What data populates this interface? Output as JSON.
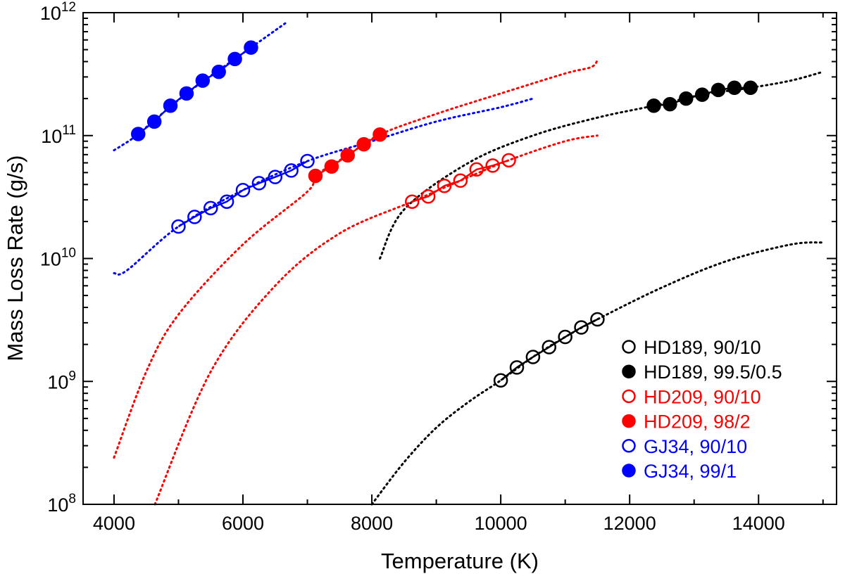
{
  "chart_data": {
    "type": "scatter",
    "title": "",
    "xlabel": "Temperature (K)",
    "ylabel": "Mass Loss Rate (g/s)",
    "xlim": [
      3520,
      15210
    ],
    "ylim": [
      100000000.0,
      1000000000000.0
    ],
    "yscale": "log",
    "grid": false,
    "legend_position": "bottom-right",
    "x_ticks": [
      4000,
      6000,
      8000,
      10000,
      12000,
      14000
    ],
    "x_tick_labels": [
      "4000",
      "6000",
      "8000",
      "10000",
      "12000",
      "14000"
    ],
    "y_ticks": [
      100000000.0,
      1000000000.0,
      10000000000.0,
      100000000000.0,
      1000000000000.0
    ],
    "y_tick_labels": [
      {
        "base": "10",
        "exp": "8"
      },
      {
        "base": "10",
        "exp": "9"
      },
      {
        "base": "10",
        "exp": "10"
      },
      {
        "base": "10",
        "exp": "11"
      },
      {
        "base": "10",
        "exp": "12"
      }
    ],
    "series": [
      {
        "name": "HD189, 90/10",
        "color": "#000000",
        "filled": false,
        "x": [
          10000,
          10250,
          10500,
          10750,
          11000,
          11250,
          11500
        ],
        "y": [
          1020000000.0,
          1300000000.0,
          1580000000.0,
          1900000000.0,
          2300000000.0,
          2750000000.0,
          3200000000.0
        ],
        "dotted": [
          [
            8000,
            100000000.0
          ],
          [
            8500,
            220000000.0
          ],
          [
            9000,
            420000000.0
          ],
          [
            9500,
            680000000.0
          ],
          [
            10000,
            1020000000.0
          ],
          [
            10500,
            1580000000.0
          ],
          [
            11000,
            2300000000.0
          ],
          [
            11500,
            3200000000.0
          ],
          [
            12500,
            5800000000.0
          ],
          [
            13500,
            9500000000.0
          ],
          [
            14500,
            13000000000.0
          ],
          [
            15000,
            13500000000.0
          ]
        ]
      },
      {
        "name": "HD189, 99.5/0.5",
        "color": "#000000",
        "filled": true,
        "x": [
          12375,
          12625,
          12875,
          13125,
          13375,
          13625,
          13875
        ],
        "y": [
          175000000000.0,
          180000000000.0,
          200000000000.0,
          215000000000.0,
          235000000000.0,
          245000000000.0,
          245000000000.0
        ],
        "dotted": [
          [
            8125,
            10000000000.0
          ],
          [
            8500,
            25000000000.0
          ],
          [
            9500,
            60000000000.0
          ],
          [
            10500,
            100000000000.0
          ],
          [
            11500,
            140000000000.0
          ],
          [
            12375,
            175000000000.0
          ],
          [
            13125,
            215000000000.0
          ],
          [
            13875,
            245000000000.0
          ],
          [
            14500,
            280000000000.0
          ],
          [
            15000,
            330000000000.0
          ]
        ]
      },
      {
        "name": "HD209, 90/10",
        "color": "#ff0000",
        "filled": false,
        "x": [
          8625,
          8875,
          9125,
          9375,
          9625,
          9875,
          10125
        ],
        "y": [
          29000000000.0,
          32000000000.0,
          39000000000.0,
          43000000000.0,
          53000000000.0,
          57000000000.0,
          63000000000.0
        ],
        "dotted": [
          [
            4634,
            100000000.0
          ],
          [
            5500,
            1200000000.0
          ],
          [
            6500,
            6000000000.0
          ],
          [
            7500,
            16000000000.0
          ],
          [
            8625,
            29000000000.0
          ],
          [
            9375,
            43000000000.0
          ],
          [
            10125,
            63000000000.0
          ],
          [
            11000,
            90000000000.0
          ],
          [
            11500,
            100000000000.0
          ]
        ]
      },
      {
        "name": "HD209, 98/2",
        "color": "#ff0000",
        "filled": true,
        "x": [
          7125,
          7375,
          7625,
          7875,
          8125
        ],
        "y": [
          47000000000.0,
          56000000000.0,
          69000000000.0,
          85000000000.0,
          102000000000.0
        ],
        "dotted": [
          [
            4000,
            240000000.0
          ],
          [
            4500,
            1200000000.0
          ],
          [
            5000,
            3500000000.0
          ],
          [
            6000,
            13000000000.0
          ],
          [
            7000,
            35000000000.0
          ],
          [
            7125,
            47000000000.0
          ],
          [
            7625,
            69000000000.0
          ],
          [
            8125,
            102000000000.0
          ],
          [
            9000,
            150000000000.0
          ],
          [
            10000,
            220000000000.0
          ],
          [
            11000,
            320000000000.0
          ],
          [
            11400,
            360000000000.0
          ],
          [
            11500,
            410000000000.0
          ]
        ]
      },
      {
        "name": "GJ34, 90/10",
        "color": "#0000ff",
        "filled": false,
        "x": [
          5000,
          5250,
          5500,
          5750,
          6000,
          6250,
          6500,
          6750,
          7000
        ],
        "y": [
          18200000000.0,
          21800000000.0,
          25700000000.0,
          29000000000.0,
          36000000000.0,
          41000000000.0,
          46000000000.0,
          52000000000.0,
          62000000000.0
        ],
        "dotted": [
          [
            4000,
            7600000000.0
          ],
          [
            4200,
            8000000000.0
          ],
          [
            5000,
            18200000000.0
          ],
          [
            6000,
            36000000000.0
          ],
          [
            7000,
            62000000000.0
          ],
          [
            8000,
            90000000000.0
          ],
          [
            9000,
            130000000000.0
          ],
          [
            10000,
            170000000000.0
          ],
          [
            10500,
            200000000000.0
          ]
        ]
      },
      {
        "name": "GJ34, 99/1",
        "color": "#0000ff",
        "filled": true,
        "x": [
          4375,
          4625,
          4875,
          5125,
          5375,
          5625,
          5875,
          6125
        ],
        "y": [
          103000000000.0,
          130000000000.0,
          175000000000.0,
          220000000000.0,
          280000000000.0,
          330000000000.0,
          420000000000.0,
          520000000000.0
        ],
        "dotted": [
          [
            4000,
            76000000000.0
          ],
          [
            4150,
            85000000000.0
          ],
          [
            4375,
            103000000000.0
          ],
          [
            5125,
            220000000000.0
          ],
          [
            5875,
            420000000000.0
          ],
          [
            6125,
            520000000000.0
          ],
          [
            6700,
            850000000000.0
          ]
        ]
      }
    ]
  }
}
